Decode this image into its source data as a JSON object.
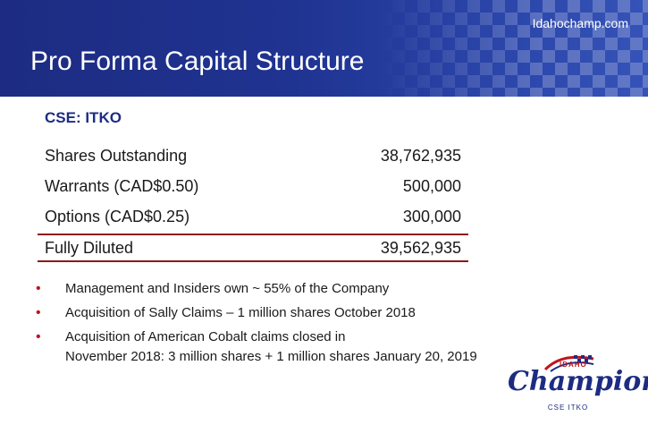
{
  "header": {
    "site": "Idahochamp.com",
    "title": "Pro Forma Capital Structure"
  },
  "ticker": "CSE: ITKO",
  "rows": [
    {
      "label": "Shares Outstanding",
      "value": "38,762,935"
    },
    {
      "label": "Warrants (CAD$0.50)",
      "value": "500,000"
    },
    {
      "label": "Options (CAD$0.25)",
      "value": "300,000"
    }
  ],
  "total": {
    "label": "Fully Diluted",
    "value": "39,562,935"
  },
  "bullets": [
    "Management and Insiders own ~ 55% of the Company",
    "Acquisition of Sally Claims – 1 million shares October 2018",
    "Acquisition of American Cobalt claims closed in\nNovember 2018: 3 million shares + 1 million shares January 20, 2019"
  ],
  "logo": {
    "top": "IDAHO",
    "name": "Champion",
    "sub": "CSE ITKO"
  },
  "colors": {
    "header_blue": "#1f3391",
    "ticker_navy": "#1d2c82",
    "rule_red": "#8b1a1a",
    "bullet_red": "#c0141c"
  }
}
